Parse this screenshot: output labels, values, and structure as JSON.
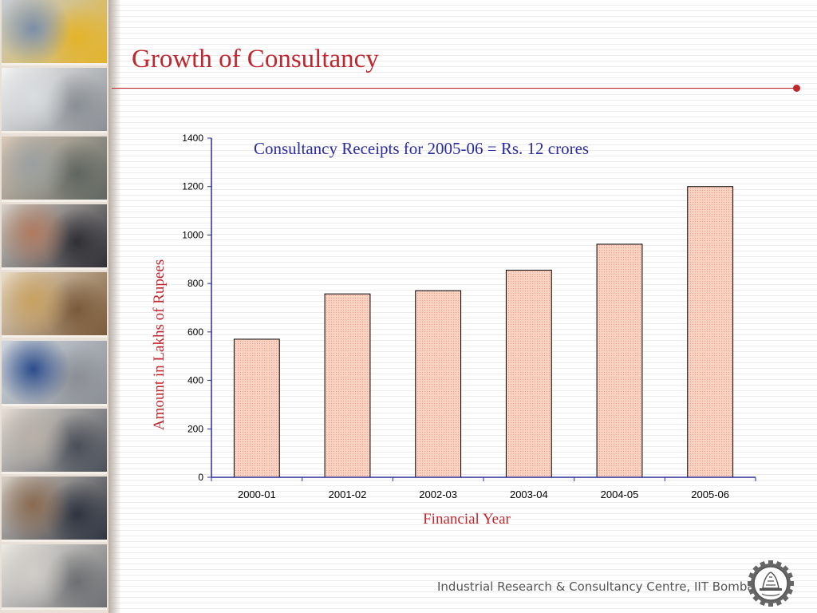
{
  "slide": {
    "title": "Growth of Consultancy",
    "footer": "Industrial Research & Consultancy Centre, IIT Bombay"
  },
  "sidebar": {
    "photos": [
      {
        "name": "photo-machinery",
        "colors": [
          "#7b8ea8",
          "#e3b32a",
          "#c7cdd6"
        ]
      },
      {
        "name": "photo-lab-instrument",
        "colors": [
          "#d9dde0",
          "#8a8f95",
          "#f3f3f2"
        ]
      },
      {
        "name": "photo-researcher-microscope",
        "colors": [
          "#9aa0a1",
          "#5f6660",
          "#d9c9b8"
        ]
      },
      {
        "name": "photo-test-rig",
        "colors": [
          "#b07a60",
          "#2f2f35",
          "#d6d0c8"
        ]
      },
      {
        "name": "photo-building-interior",
        "colors": [
          "#c9a160",
          "#7a5a3a",
          "#e9dcc5"
        ]
      },
      {
        "name": "photo-blue-equipment",
        "colors": [
          "#2c4c8c",
          "#8b8f95",
          "#cfd6de"
        ]
      },
      {
        "name": "photo-computer-lab",
        "colors": [
          "#b8b0a8",
          "#4a4f58",
          "#e6dfd6"
        ]
      },
      {
        "name": "photo-workstation",
        "colors": [
          "#8a6a50",
          "#2e3440",
          "#d8cfc4"
        ]
      },
      {
        "name": "photo-electronics-bench",
        "colors": [
          "#d0cdc8",
          "#6d6f72",
          "#ede9e3"
        ]
      }
    ]
  },
  "chart_data": {
    "type": "bar",
    "categories": [
      "2000-01",
      "2001-02",
      "2002-03",
      "2003-04",
      "2004-05",
      "2005-06"
    ],
    "values": [
      570,
      757,
      770,
      855,
      962,
      1200
    ],
    "title": "Consultancy Receipts for 2005-06 = Rs. 12 crores",
    "xlabel": "Financial Year",
    "ylabel": "Amount in Lakhs of Rupees",
    "ylim": [
      0,
      1400
    ],
    "yticks": [
      0,
      200,
      400,
      600,
      800,
      1000,
      1200,
      1400
    ],
    "bar_color": "#fbd3c3",
    "bar_edge": "#000000",
    "axis_color": "#2a2a9a",
    "label_color": "#c0262d",
    "title_color": "#2a2aa0",
    "grid": false,
    "legend": "none"
  }
}
